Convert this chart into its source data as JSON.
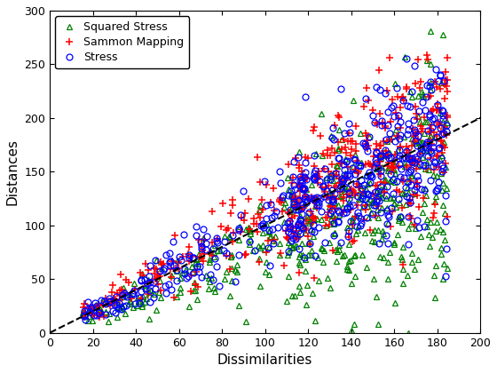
{
  "title": "",
  "xlabel": "Dissimilarities",
  "ylabel": "Distances",
  "xlim": [
    0,
    200
  ],
  "ylim": [
    0,
    300
  ],
  "xticks": [
    0,
    20,
    40,
    60,
    80,
    100,
    120,
    140,
    160,
    180,
    200
  ],
  "yticks": [
    0,
    50,
    100,
    150,
    200,
    250,
    300
  ],
  "legend_labels": [
    "Stress",
    "Sammon Mapping",
    "Squared Stress"
  ],
  "dashed_line_x": [
    0,
    205
  ],
  "dashed_line_y": [
    0,
    205
  ],
  "seed": 42,
  "n_points": 500,
  "background": "#ffffff"
}
